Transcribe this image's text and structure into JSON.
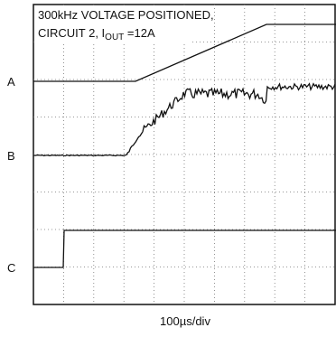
{
  "annotation": {
    "line1": "300kHz VOLTAGE POSITIONED,",
    "line2_prefix": "CIRCUIT 2, I",
    "line2_subscript": "OUT",
    "line2_suffix": " =12A"
  },
  "trace_labels": [
    "A",
    "B",
    "C"
  ],
  "x_scale": "100µs/div"
}
